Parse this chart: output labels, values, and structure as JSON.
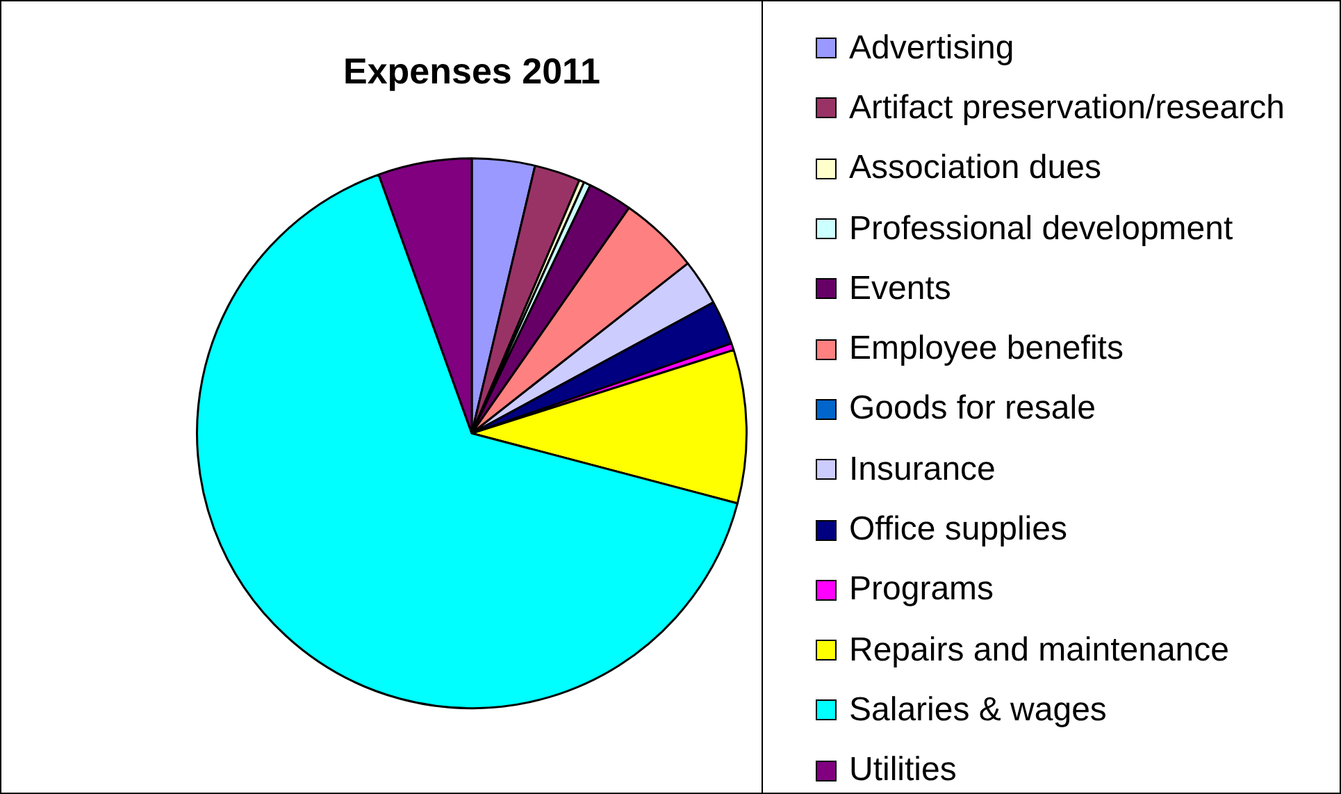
{
  "chart_data": {
    "type": "pie",
    "title": "Expenses 2011",
    "categories": [
      "Advertising",
      "Artifact preservation/research",
      "Association dues",
      "Professional development",
      "Events",
      "Employee benefits",
      "Goods for resale",
      "Insurance",
      "Office supplies",
      "Programs",
      "Repairs and maintenance",
      "Salaries & wages",
      "Utilities"
    ],
    "values": [
      3.7,
      2.7,
      0.3,
      0.4,
      2.6,
      4.7,
      0,
      2.7,
      2.6,
      0.4,
      9.0,
      65.4,
      5.5
    ],
    "colors": [
      "#9999ff",
      "#993366",
      "#ffffcc",
      "#ccffff",
      "#660066",
      "#ff8080",
      "#0066cc",
      "#ccccff",
      "#000080",
      "#ff00ff",
      "#ffff00",
      "#00ffff",
      "#800080"
    ],
    "legend": "right"
  }
}
